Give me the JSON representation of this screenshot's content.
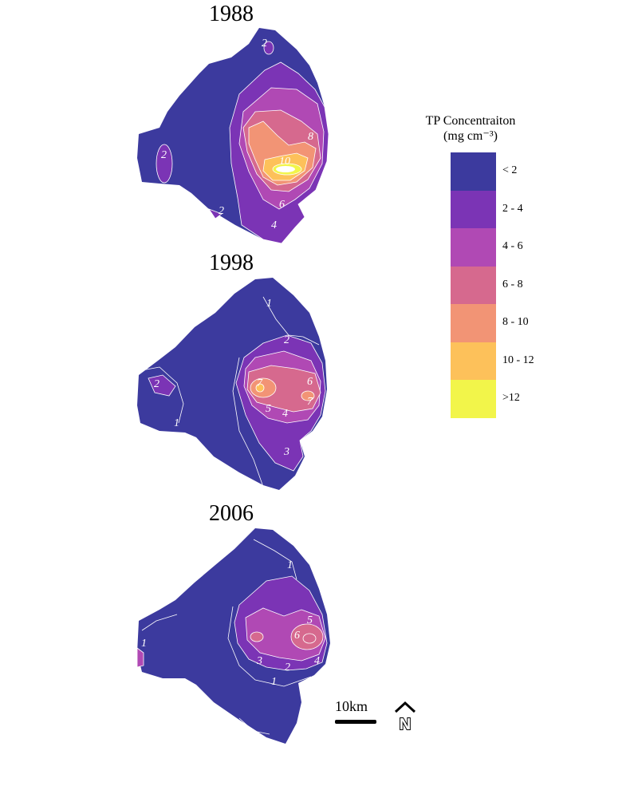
{
  "panels": [
    {
      "id": "1988",
      "title": "1988",
      "contour_labels": [
        "2",
        "8",
        "10",
        "2",
        "6",
        "2",
        "4"
      ]
    },
    {
      "id": "1998",
      "title": "1998",
      "contour_labels": [
        "1",
        "2",
        "2",
        "7",
        "6",
        "7",
        "5",
        "4",
        "1",
        "3"
      ]
    },
    {
      "id": "2006",
      "title": "2006",
      "contour_labels": [
        "1",
        "1",
        "5",
        "6",
        "3",
        "2",
        "4",
        "1"
      ]
    }
  ],
  "legend": {
    "title_line1": "TP Concentraiton",
    "title_line2": "(mg cm⁻³)",
    "classes": [
      {
        "label": "<  2",
        "color": "#3c3a9e"
      },
      {
        "label": "2 -  4",
        "color": "#7b34b5"
      },
      {
        "label": "4 -  6",
        "color": "#b049b4"
      },
      {
        "label": "6 -  8",
        "color": "#d6698e"
      },
      {
        "label": "8 - 10",
        "color": "#f29475"
      },
      {
        "label": "10 - 12",
        "color": "#fdc15a"
      },
      {
        "label": ">12",
        "color": "#f2f54a"
      }
    ]
  },
  "scale_bar": {
    "label": "10km"
  },
  "north_arrow": {
    "label": "N",
    "icon": "north-arrow-icon"
  }
}
